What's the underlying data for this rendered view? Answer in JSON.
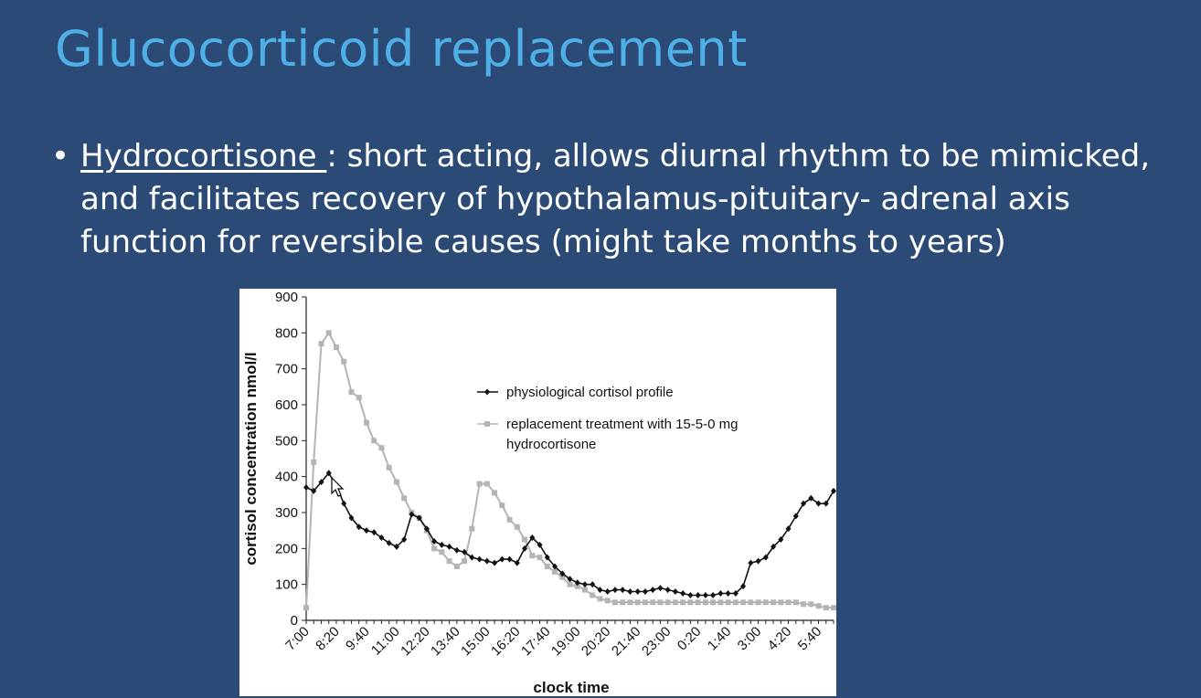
{
  "slide": {
    "title": "Glucocorticoid replacement",
    "bullet": {
      "term": "Hydrocortisone ",
      "separator": ": ",
      "text": "short acting, allows diurnal rhythm to be mimicked, and facilitates recovery of hypothalamus-pituitary- adrenal axis function for reversible causes (might take months to years)"
    }
  },
  "colors": {
    "background": "#2c4a76",
    "title": "#4fb0e8",
    "text": "#ffffff",
    "physiological": "#111111",
    "replacement": "#b4b4b4"
  },
  "chart_data": {
    "type": "line",
    "xlabel": "clock time",
    "ylabel": "cortisol concentration nmol/l",
    "ylim": [
      0,
      900
    ],
    "yticks": [
      0,
      100,
      200,
      300,
      400,
      500,
      600,
      700,
      800,
      900
    ],
    "xtick_labels": [
      "7:00",
      "8:20",
      "9:40",
      "11:00",
      "12:20",
      "13:40",
      "15:00",
      "16:20",
      "17:40",
      "19:00",
      "20:20",
      "21:40",
      "23:00",
      "0:20",
      "1:40",
      "3:00",
      "4:20",
      "5:40"
    ],
    "x_interval_minutes": 20,
    "grid": false,
    "legend_position": "center-right",
    "series": [
      {
        "name": "physiological cortisol profile",
        "color": "#111111",
        "marker": "diamond",
        "values": [
          370,
          360,
          385,
          410,
          375,
          325,
          285,
          260,
          250,
          245,
          230,
          215,
          205,
          225,
          295,
          285,
          255,
          220,
          210,
          205,
          195,
          190,
          175,
          170,
          165,
          160,
          170,
          170,
          160,
          200,
          230,
          210,
          175,
          150,
          130,
          115,
          105,
          100,
          100,
          85,
          80,
          85,
          85,
          80,
          80,
          80,
          85,
          90,
          85,
          80,
          75,
          70,
          70,
          70,
          70,
          75,
          75,
          75,
          95,
          160,
          165,
          175,
          205,
          225,
          255,
          290,
          325,
          340,
          325,
          325,
          360
        ]
      },
      {
        "name": "replacement treatment with 15-5-0 mg hydrocortisone",
        "color": "#b4b4b4",
        "marker": "square",
        "values": [
          35,
          440,
          770,
          800,
          760,
          720,
          635,
          620,
          550,
          500,
          480,
          425,
          385,
          340,
          300,
          285,
          250,
          200,
          190,
          165,
          150,
          165,
          255,
          380,
          380,
          355,
          320,
          280,
          260,
          225,
          180,
          175,
          150,
          135,
          120,
          100,
          95,
          85,
          70,
          60,
          55,
          50,
          50,
          50,
          50,
          50,
          50,
          50,
          50,
          50,
          50,
          50,
          50,
          50,
          50,
          50,
          50,
          50,
          50,
          50,
          50,
          50,
          50,
          50,
          50,
          50,
          45,
          45,
          40,
          35,
          35
        ]
      }
    ]
  },
  "cursor": {
    "icon": "pointer-arrow-icon"
  }
}
